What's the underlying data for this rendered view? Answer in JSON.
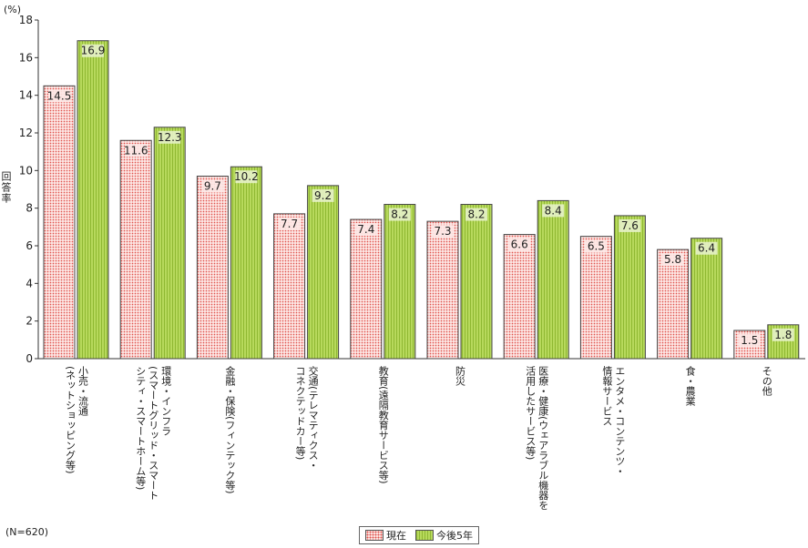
{
  "unit_label": "(%)",
  "y_axis_label": "回答率",
  "note": "(N=620)",
  "legend": {
    "now": "現在",
    "future": "今後5年"
  },
  "colors": {
    "now_dot": "#e0524c",
    "now_fill": "#fde8e6",
    "future_fill": "#b7d95c",
    "future_stripe": "#8fb832"
  },
  "chart_data": {
    "type": "bar",
    "title": "",
    "xlabel": "",
    "ylabel": "回答率",
    "ylim": [
      0,
      18
    ],
    "yticks": [
      0,
      2,
      4,
      6,
      8,
      10,
      12,
      14,
      16,
      18
    ],
    "grid": false,
    "legend_position": "bottom-center",
    "categories": [
      "小売・流通\n(ネットショッピング等)",
      "環境・インフラ\n(スマートグリッド・スマート\nシティ・スマートホーム等)",
      "金融・保険(フィンテック等)",
      "交通(テレマティクス・\nコネクテッドカー等)",
      "教育(遠隔教育サービス等)",
      "防災",
      "医療・健康(ウェアラブル機器を\n活用したサービス等)",
      "エンタメ・コンテンツ・\n情報サービス",
      "食・農業",
      "その他"
    ],
    "series": [
      {
        "name": "現在",
        "values": [
          14.5,
          11.6,
          9.7,
          7.7,
          7.4,
          7.3,
          6.6,
          6.5,
          5.8,
          1.5
        ]
      },
      {
        "name": "今後5年",
        "values": [
          16.9,
          12.3,
          10.2,
          9.2,
          8.2,
          8.2,
          8.4,
          7.6,
          6.4,
          1.8
        ]
      }
    ]
  }
}
